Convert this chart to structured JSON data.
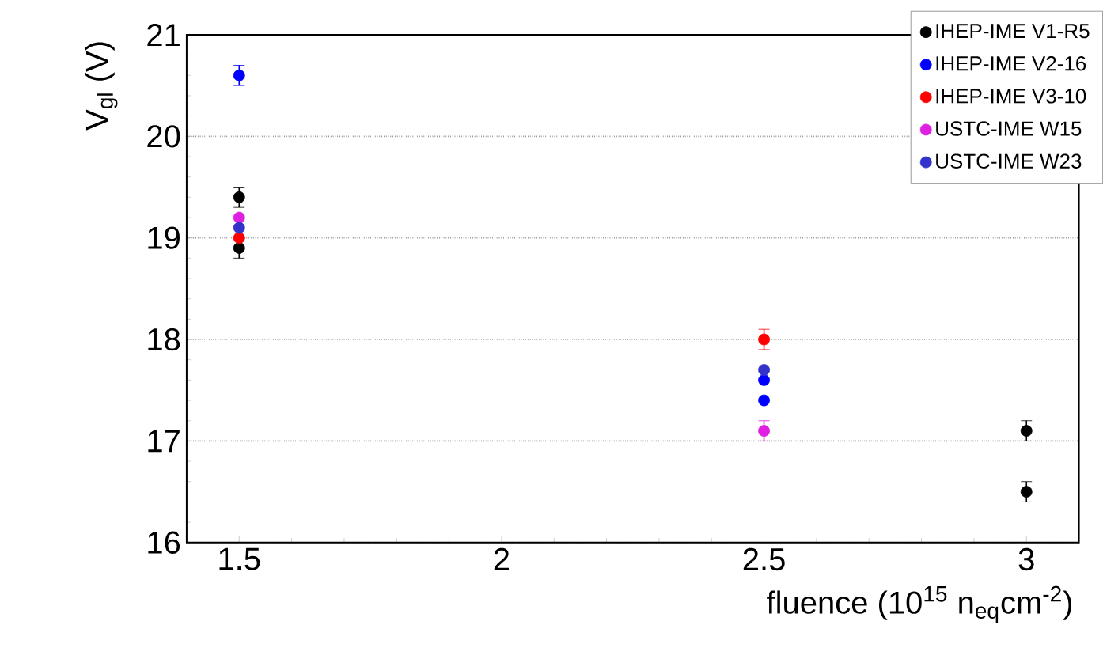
{
  "chart_data": {
    "type": "scatter",
    "xlabel": "fluence (10$^{15}$ n$_{eq}$cm$^{-2}$)",
    "ylabel": "V$_{gl}$ (V)",
    "xlim": [
      1.4,
      3.1
    ],
    "xticks": [
      1.5,
      2,
      2.5,
      3
    ],
    "ylim": [
      16,
      21
    ],
    "yticks": [
      16,
      17,
      18,
      19,
      20,
      21
    ],
    "grid": "y",
    "legend": "top right",
    "series": [
      {
        "name": "IHEP-IME V1-R5",
        "color": "#000000",
        "x": [
          1.5,
          1.5,
          3,
          3
        ],
        "values": [
          19.4,
          18.9,
          17.1,
          16.5
        ],
        "errors": [
          0.1,
          0.1,
          0.1,
          0.1
        ]
      },
      {
        "name": "IHEP-IME V2-16",
        "color": "#0000ff",
        "x": [
          1.5,
          2.5,
          2.5
        ],
        "values": [
          20.6,
          17.6,
          17.4
        ],
        "errors": [
          0.1,
          null,
          null
        ]
      },
      {
        "name": "IHEP-IME V3-10",
        "color": "#ff0000",
        "x": [
          1.5,
          2.5
        ],
        "values": [
          19.0,
          18.0
        ],
        "errors": [
          null,
          0.1
        ]
      },
      {
        "name": "USTC-IME W15",
        "color": "#e020e0",
        "x": [
          1.5,
          2.5
        ],
        "values": [
          19.2,
          17.1
        ],
        "errors": [
          null,
          0.1
        ]
      },
      {
        "name": "USTC-IME W23",
        "color": "#3333cc",
        "x": [
          1.5,
          2.5
        ],
        "values": [
          19.1,
          17.7
        ],
        "errors": [
          null,
          null
        ]
      }
    ]
  }
}
